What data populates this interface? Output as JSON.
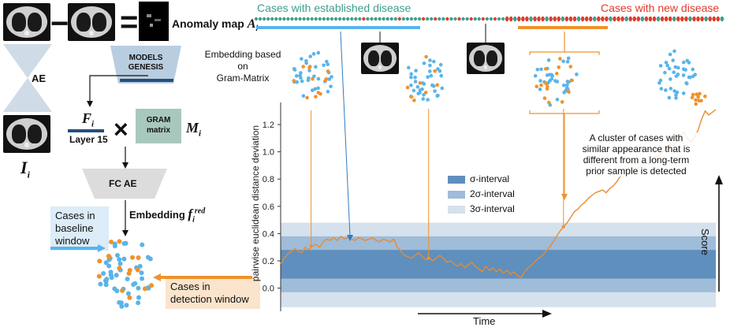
{
  "left_panel": {
    "anomaly_map_label": "Anomaly map",
    "anomaly_map_symbol": "A",
    "anomaly_map_sub": "i",
    "ae_label": "AE",
    "models_genesis_line1": "MODELS",
    "models_genesis_line2": "GENESIS",
    "f_symbol": "F",
    "f_sub": "i",
    "layer_label": "Layer 15",
    "times_symbol": "×",
    "gram_line1": "GRAM",
    "gram_line2": "matrix",
    "m_symbol": "M",
    "m_sub": "i",
    "i_symbol": "I",
    "i_sub": "i",
    "fc_ae_label": "FC AE",
    "embedding_label": "Embedding",
    "embedding_symbol": "f",
    "embedding_sub": "i",
    "embedding_sup": "red",
    "baseline_label_1": "Cases in",
    "baseline_label_2": "baseline",
    "baseline_label_3": "window",
    "detection_label_1": "Cases in",
    "detection_label_2": "detection window",
    "minus_symbol": "−",
    "equals_symbol": "="
  },
  "top": {
    "established_label": "Cases with established disease",
    "new_label": "Cases with new disease",
    "embedding_gram_line1": "Embedding based on",
    "embedding_gram_line2": "Gram-Matrix"
  },
  "chart_annotation": {
    "line1": "A cluster of cases with",
    "line2": "similar appearance that is",
    "line3": "different from a long-term",
    "line4": "prior sample is detected"
  },
  "legend": {
    "sigma": "σ-interval",
    "two_sigma": "2σ-interval",
    "three_sigma": "3σ-interval"
  },
  "axes": {
    "ylabel": "pairwise euclidean distance deviation",
    "xlabel": "Time",
    "score_label": "Score"
  },
  "colors": {
    "blue": "#5ab4ea",
    "orange": "#f0922b",
    "teal": "#3d9e8c",
    "red": "#e03b2c",
    "band1": "#5f8fbd",
    "band2": "#9fbcd8",
    "band3": "#d5e1ec",
    "line": "#ea8a30"
  },
  "chart_data": {
    "type": "line",
    "ylabel": "pairwise euclidean distance deviation",
    "xlabel": "Time",
    "yticks": [
      "0.0",
      "0.2",
      "0.4",
      "0.6",
      "0.8",
      "1.0",
      "1.2"
    ],
    "ylim": [
      -0.17,
      1.42
    ],
    "bands": [
      {
        "name": "σ-interval",
        "low": 0.07,
        "high": 0.28
      },
      {
        "name": "2σ-interval",
        "low": -0.03,
        "high": 0.38
      },
      {
        "name": "3σ-interval",
        "low": -0.14,
        "high": 0.48
      }
    ],
    "series": [
      {
        "values": [
          0.18,
          0.22,
          0.25,
          0.27,
          0.29,
          0.27,
          0.26,
          0.3,
          0.28,
          0.31,
          0.32,
          0.3,
          0.34,
          0.36,
          0.35,
          0.37,
          0.35,
          0.38,
          0.36,
          0.37,
          0.36,
          0.35,
          0.37,
          0.36,
          0.35,
          0.36,
          0.37,
          0.35,
          0.34,
          0.36,
          0.35,
          0.34,
          0.36,
          0.3,
          0.27,
          0.24,
          0.23,
          0.22,
          0.24,
          0.26,
          0.23,
          0.21,
          0.22,
          0.2,
          0.22,
          0.24,
          0.22,
          0.19,
          0.2,
          0.18,
          0.16,
          0.18,
          0.15,
          0.17,
          0.19,
          0.16,
          0.14,
          0.12,
          0.16,
          0.13,
          0.15,
          0.12,
          0.14,
          0.11,
          0.13,
          0.1,
          0.12,
          0.09,
          0.08,
          0.12,
          0.15,
          0.17,
          0.2,
          0.22,
          0.24,
          0.27,
          0.3,
          0.34,
          0.38,
          0.42,
          0.45,
          0.48,
          0.52,
          0.56,
          0.58,
          0.61,
          0.63,
          0.66,
          0.68,
          0.7,
          0.71,
          0.72,
          0.7,
          0.73,
          0.75,
          0.78,
          0.82,
          0.86,
          0.88,
          0.86,
          0.84,
          0.88,
          0.9,
          0.92,
          0.91,
          0.94,
          0.96,
          0.98,
          1.0,
          1.03,
          1.06,
          1.04,
          1.08,
          1.12,
          1.14,
          1.1,
          1.07,
          1.11,
          1.16,
          1.24,
          1.3,
          1.27,
          1.29,
          1.31
        ]
      }
    ]
  }
}
